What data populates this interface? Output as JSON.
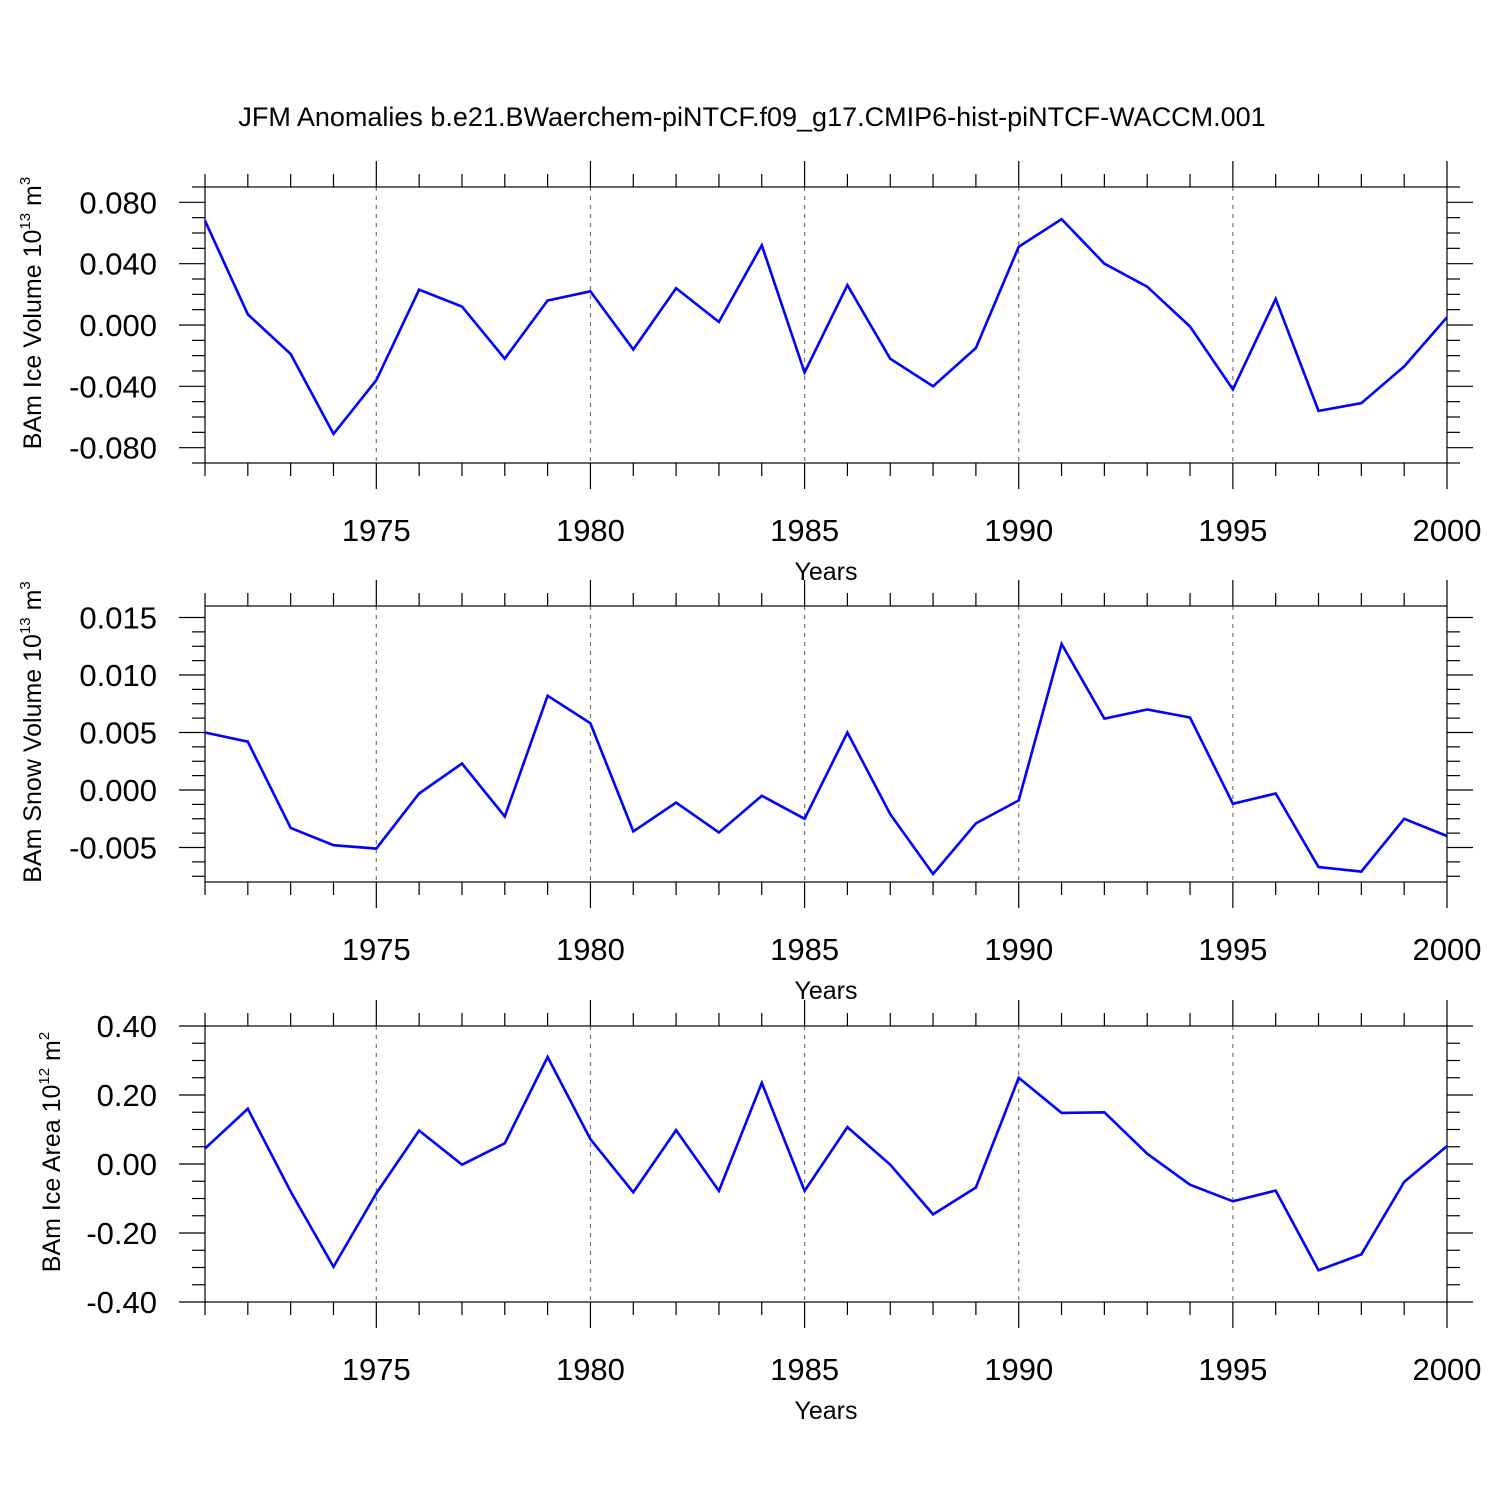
{
  "title": "JFM Anomalies b.e21.BWaerchem-piNTCF.f09_g17.CMIP6-hist-piNTCF-WACCM.001",
  "colors": {
    "line": "#0000ff",
    "axis": "#000000",
    "grid": "#777777"
  },
  "chart_data": [
    {
      "type": "line",
      "ylabel": {
        "main": "BAm Ice Volume 10",
        "sup": "13",
        "mid": " m",
        "sup2": "3"
      },
      "xlabel": "Years",
      "xlim": [
        1971,
        2000
      ],
      "ylim": [
        -0.09,
        0.09
      ],
      "ytick_values": [
        0.08,
        0.04,
        0.0,
        -0.04,
        -0.08
      ],
      "ytick_labels": [
        "0.080",
        "0.040",
        "0.000",
        "-0.040",
        "-0.080"
      ],
      "xtick_values": [
        1975,
        1980,
        1985,
        1990,
        1995,
        2000
      ],
      "xtick_labels": [
        "1975",
        "1980",
        "1985",
        "1990",
        "1995",
        "2000"
      ],
      "grid_x": [
        1975,
        1980,
        1985,
        1990,
        1995
      ],
      "series": [
        {
          "name": "BAm Ice Volume",
          "x": [
            1971,
            1972,
            1973,
            1974,
            1975,
            1976,
            1977,
            1978,
            1979,
            1980,
            1981,
            1982,
            1983,
            1984,
            1985,
            1986,
            1987,
            1988,
            1989,
            1990,
            1991,
            1992,
            1993,
            1994,
            1995,
            1996,
            1997,
            1998,
            1999,
            2000
          ],
          "values": [
            0.068,
            0.007,
            -0.019,
            -0.071,
            -0.036,
            0.023,
            0.012,
            -0.022,
            0.016,
            0.022,
            -0.016,
            0.024,
            0.002,
            0.052,
            -0.031,
            0.026,
            -0.022,
            -0.04,
            -0.015,
            0.051,
            0.069,
            0.04,
            0.025,
            -0.001,
            -0.042,
            0.017,
            -0.056,
            -0.051,
            -0.027,
            0.005
          ]
        }
      ]
    },
    {
      "type": "line",
      "ylabel": {
        "main": "BAm Snow Volume 10",
        "sup": "13",
        "mid": " m",
        "sup2": "3"
      },
      "xlabel": "Years",
      "xlim": [
        1971,
        2000
      ],
      "ylim": [
        -0.008,
        0.016
      ],
      "ytick_values": [
        0.015,
        0.01,
        0.005,
        0.0,
        -0.005
      ],
      "ytick_labels": [
        "0.015",
        "0.010",
        "0.005",
        "0.000",
        "-0.005"
      ],
      "xtick_values": [
        1975,
        1980,
        1985,
        1990,
        1995,
        2000
      ],
      "xtick_labels": [
        "1975",
        "1980",
        "1985",
        "1990",
        "1995",
        "2000"
      ],
      "grid_x": [
        1975,
        1980,
        1985,
        1990,
        1995
      ],
      "series": [
        {
          "name": "BAm Snow Volume",
          "x": [
            1971,
            1972,
            1973,
            1974,
            1975,
            1976,
            1977,
            1978,
            1979,
            1980,
            1981,
            1982,
            1983,
            1984,
            1985,
            1986,
            1987,
            1988,
            1989,
            1990,
            1991,
            1992,
            1993,
            1994,
            1995,
            1996,
            1997,
            1998,
            1999,
            2000
          ],
          "values": [
            0.005,
            0.0042,
            -0.0033,
            -0.0048,
            -0.0051,
            -0.0003,
            0.0023,
            -0.0023,
            0.0082,
            0.0058,
            -0.0036,
            -0.0011,
            -0.0037,
            -0.0005,
            -0.0025,
            0.005,
            -0.0021,
            -0.0073,
            -0.0029,
            -0.0009,
            0.0127,
            0.0062,
            0.007,
            0.0063,
            -0.0012,
            -0.0003,
            -0.0067,
            -0.0071,
            -0.0025,
            -0.004
          ]
        }
      ]
    },
    {
      "type": "line",
      "ylabel": {
        "main": "BAm Ice Area 10",
        "sup": "12",
        "mid": " m",
        "sup2": "2"
      },
      "xlabel": "Years",
      "xlim": [
        1971,
        2000
      ],
      "ylim": [
        -0.4,
        0.4
      ],
      "ytick_values": [
        0.4,
        0.2,
        0.0,
        -0.2,
        -0.4
      ],
      "ytick_labels": [
        "0.40",
        "0.20",
        "0.00",
        "-0.20",
        "-0.40"
      ],
      "xtick_values": [
        1975,
        1980,
        1985,
        1990,
        1995,
        2000
      ],
      "xtick_labels": [
        "1975",
        "1980",
        "1985",
        "1990",
        "1995",
        "2000"
      ],
      "grid_x": [
        1975,
        1980,
        1985,
        1990,
        1995
      ],
      "series": [
        {
          "name": "BAm Ice Area",
          "x": [
            1971,
            1972,
            1973,
            1974,
            1975,
            1976,
            1977,
            1978,
            1979,
            1980,
            1981,
            1982,
            1983,
            1984,
            1985,
            1986,
            1987,
            1988,
            1989,
            1990,
            1991,
            1992,
            1993,
            1994,
            1995,
            1996,
            1997,
            1998,
            1999,
            2000
          ],
          "values": [
            0.045,
            0.16,
            -0.08,
            -0.298,
            -0.085,
            0.097,
            -0.002,
            0.06,
            0.31,
            0.072,
            -0.082,
            0.098,
            -0.078,
            0.235,
            -0.078,
            0.107,
            -0.002,
            -0.146,
            -0.068,
            0.25,
            0.148,
            0.15,
            0.03,
            -0.06,
            -0.108,
            -0.077,
            -0.308,
            -0.262,
            -0.052,
            0.052
          ]
        }
      ]
    }
  ]
}
